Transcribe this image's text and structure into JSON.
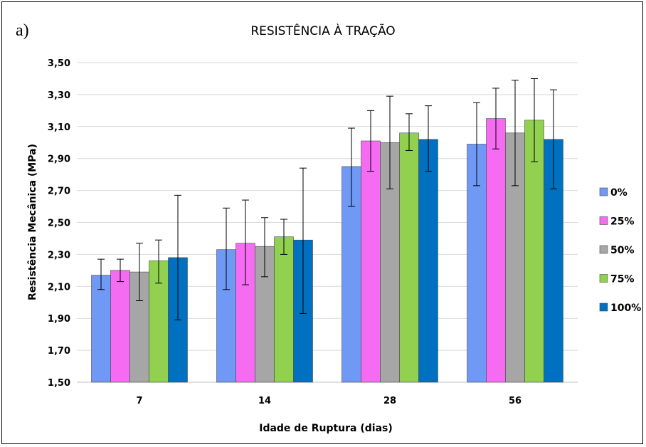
{
  "panel_label": "a)",
  "chart_data": {
    "type": "bar",
    "title": "RESISTÊNCIA À TRAÇÃO",
    "xlabel": "Idade de Ruptura (dias)",
    "ylabel": "Resistência Mecânica (MPa)",
    "ylim": [
      1.5,
      3.5
    ],
    "yticks": [
      "1,50",
      "1,70",
      "1,90",
      "2,10",
      "2,30",
      "2,50",
      "2,70",
      "2,90",
      "3,10",
      "3,30",
      "3,50"
    ],
    "categories": [
      "7",
      "14",
      "28",
      "56"
    ],
    "grid": true,
    "legend_position": "right",
    "series": [
      {
        "name": "0%",
        "color": "#6f99f4",
        "values": [
          2.17,
          2.33,
          2.85,
          2.99
        ],
        "error_low": [
          2.08,
          2.08,
          2.6,
          2.73
        ],
        "error_high": [
          2.27,
          2.59,
          3.09,
          3.25
        ]
      },
      {
        "name": "25%",
        "color": "#f56cf2",
        "values": [
          2.2,
          2.37,
          3.01,
          3.15
        ],
        "error_low": [
          2.13,
          2.11,
          2.82,
          2.96
        ],
        "error_high": [
          2.27,
          2.64,
          3.2,
          3.34
        ]
      },
      {
        "name": "50%",
        "color": "#a6a6a6",
        "values": [
          2.19,
          2.35,
          3.0,
          3.06
        ],
        "error_low": [
          2.01,
          2.16,
          2.71,
          2.73
        ],
        "error_high": [
          2.37,
          2.53,
          3.29,
          3.39
        ]
      },
      {
        "name": "75%",
        "color": "#92d050",
        "values": [
          2.26,
          2.41,
          3.06,
          3.14
        ],
        "error_low": [
          2.12,
          2.3,
          2.95,
          2.88
        ],
        "error_high": [
          2.39,
          2.52,
          3.18,
          3.4
        ]
      },
      {
        "name": "100%",
        "color": "#0070c0",
        "values": [
          2.28,
          2.39,
          3.02,
          3.02
        ],
        "error_low": [
          1.89,
          1.93,
          2.82,
          2.71
        ],
        "error_high": [
          2.67,
          2.84,
          3.23,
          3.33
        ]
      }
    ]
  }
}
